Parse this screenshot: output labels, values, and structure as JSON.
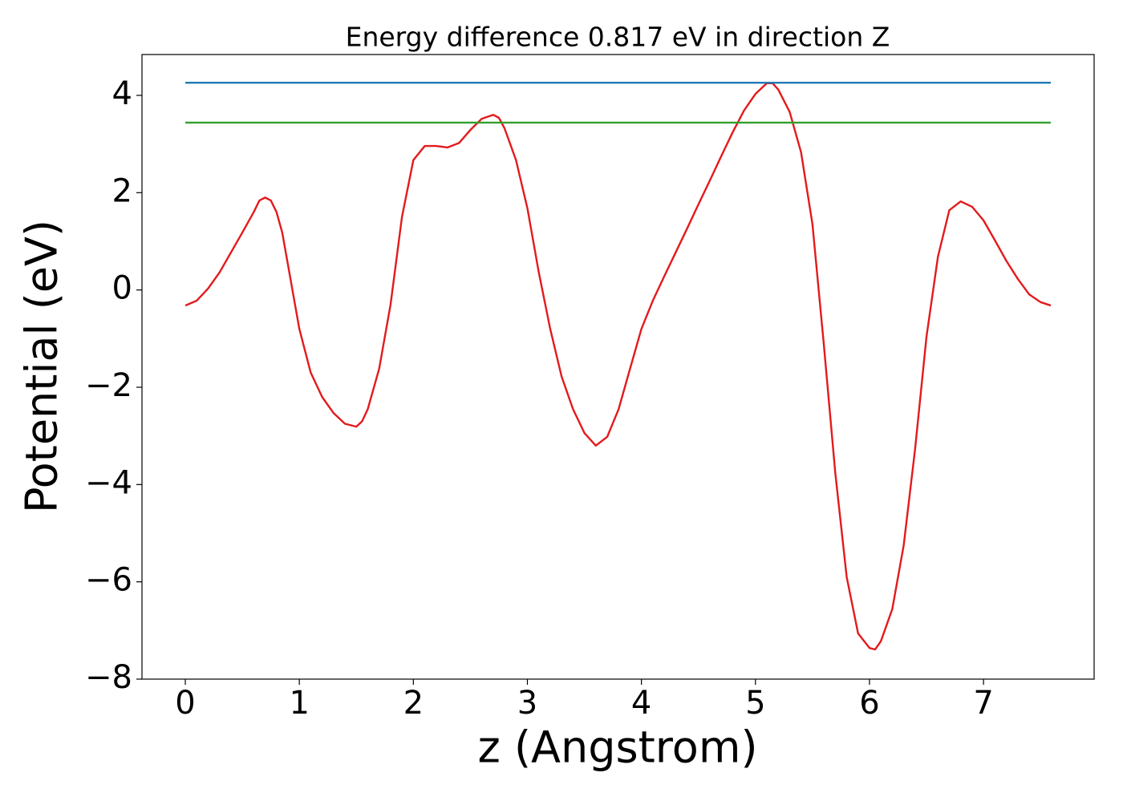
{
  "chart_data": {
    "type": "line",
    "title": "Energy difference 0.817 eV in direction Z",
    "xlabel": "z (Angstrom)",
    "ylabel": "Potential (eV)",
    "xlim": [
      -0.38,
      7.97
    ],
    "ylim": [
      -8,
      4.84
    ],
    "xticks": [
      0,
      1,
      2,
      3,
      4,
      5,
      6,
      7
    ],
    "yticks": [
      {
        "value": -8,
        "label": "−8"
      },
      {
        "value": -6,
        "label": "−6"
      },
      {
        "value": -4,
        "label": "−4"
      },
      {
        "value": -2,
        "label": "−2"
      },
      0,
      2,
      4
    ],
    "grid": false,
    "series": [
      {
        "color": "#e31a1c",
        "x": [
          0,
          0.1,
          0.2,
          0.3,
          0.4,
          0.5,
          0.6,
          0.65,
          0.7,
          0.75,
          0.8,
          0.85,
          0.9,
          1.0,
          1.1,
          1.2,
          1.3,
          1.4,
          1.5,
          1.55,
          1.6,
          1.7,
          1.8,
          1.9,
          2.0,
          2.1,
          2.2,
          2.3,
          2.4,
          2.5,
          2.6,
          2.7,
          2.75,
          2.8,
          2.9,
          3.0,
          3.1,
          3.2,
          3.3,
          3.4,
          3.5,
          3.6,
          3.7,
          3.8,
          3.9,
          4.0,
          4.1,
          4.2,
          4.3,
          4.4,
          4.5,
          4.6,
          4.7,
          4.8,
          4.9,
          5.0,
          5.1,
          5.15,
          5.2,
          5.3,
          5.4,
          5.5,
          5.6,
          5.7,
          5.8,
          5.9,
          6.0,
          6.05,
          6.1,
          6.2,
          6.3,
          6.4,
          6.5,
          6.6,
          6.7,
          6.8,
          6.9,
          7.0,
          7.1,
          7.2,
          7.3,
          7.4,
          7.5,
          7.59
        ],
        "values": [
          -0.32,
          -0.22,
          0.03,
          0.36,
          0.77,
          1.18,
          1.6,
          1.84,
          1.9,
          1.84,
          1.6,
          1.18,
          0.52,
          -0.8,
          -1.7,
          -2.2,
          -2.53,
          -2.75,
          -2.81,
          -2.7,
          -2.45,
          -1.62,
          -0.3,
          1.5,
          2.67,
          2.96,
          2.96,
          2.93,
          3.02,
          3.29,
          3.52,
          3.6,
          3.54,
          3.32,
          2.67,
          1.68,
          0.36,
          -0.8,
          -1.78,
          -2.45,
          -2.94,
          -3.2,
          -3.02,
          -2.45,
          -1.62,
          -0.8,
          -0.22,
          0.28,
          0.77,
          1.26,
          1.76,
          2.25,
          2.75,
          3.24,
          3.69,
          4.03,
          4.25,
          4.25,
          4.12,
          3.66,
          2.83,
          1.35,
          -1.13,
          -3.76,
          -5.9,
          -7.06,
          -7.36,
          -7.39,
          -7.22,
          -6.56,
          -5.25,
          -3.27,
          -0.96,
          0.68,
          1.64,
          1.82,
          1.71,
          1.43,
          1.02,
          0.6,
          0.23,
          -0.09,
          -0.25,
          -0.32
        ]
      },
      {
        "color": "#1f78b4",
        "x": [
          0,
          7.59
        ],
        "values": [
          4.26,
          4.26
        ]
      },
      {
        "color": "#33a02c",
        "x": [
          0,
          7.59
        ],
        "values": [
          3.44,
          3.44
        ]
      }
    ]
  }
}
